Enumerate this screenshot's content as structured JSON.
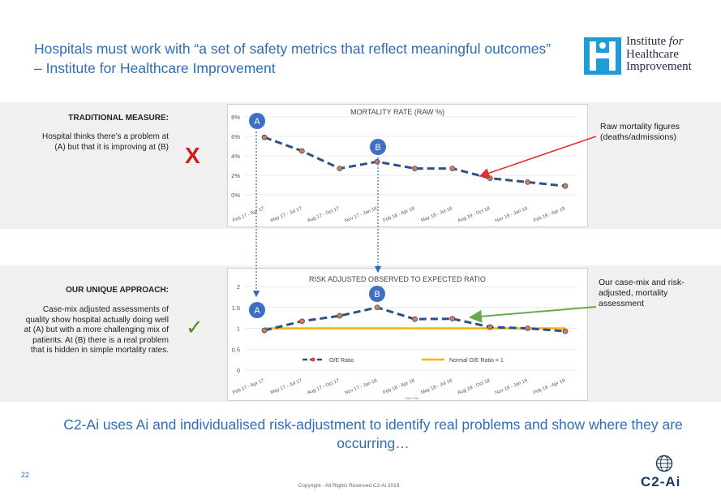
{
  "slide": {
    "title": "Hospitals must work with “a set of safety metrics that reflect meaningful outcomes” – Institute for Healthcare Improvement",
    "logo": {
      "line1": "Institute",
      "line1_italic": "for",
      "line2": "Healthcare",
      "line3": "Improvement"
    },
    "traditional": {
      "heading": "TRADITIONAL MEASURE:",
      "body": "Hospital thinks there’s a problem at (A) but that it is improving at (B)"
    },
    "unique": {
      "heading": "OUR UNIQUE APPROACH:",
      "body": "Case-mix adjusted assessments of quality show hospital actually doing well at (A) but with a more challenging mix of patients.  At (B) there is a real problem that is hidden in simple mortality rates."
    },
    "callout_top": "Raw mortality figures (deaths/admissions)",
    "callout_bottom": "Our case-mix and risk-adjusted, mortality assessment",
    "bottom_text": "C2-Ai uses Ai and individualised risk-adjustment to identify real  problems and show where they are occurring…",
    "page_number": "22",
    "copyright": "Copyright - All Rights Reserved C2-Ai 2019",
    "brand": "C2-Ai",
    "marks": {
      "cross": "X",
      "check": "✓",
      "colors": {
        "cross": "#d11a1a",
        "check": "#4f8f2a",
        "accent": "#2f6db5"
      }
    }
  },
  "chart_data": [
    {
      "type": "line",
      "title": "MORTALITY RATE (RAW %)",
      "categories": [
        "Feb 17 - Apr 17",
        "May 17 - Jul 17",
        "Aug 17 - Oct 17",
        "Nov 17 - Jan 18",
        "Feb 18 - Apr 18",
        "May 18 - Jul 18",
        "Aug 18 - Oct 18",
        "Nov 18 - Jan 19",
        "Feb 19 - Apr 19"
      ],
      "yticks": [
        "0%",
        "2%",
        "4%",
        "6%",
        "8%"
      ],
      "ylim": [
        0,
        8
      ],
      "series": [
        {
          "values": [
            5.9,
            4.5,
            2.7,
            3.4,
            2.7,
            2.7,
            1.7,
            1.3,
            0.9
          ],
          "color": "#2e4f88"
        }
      ],
      "markers": [
        {
          "label": "A",
          "index": 0
        },
        {
          "label": "B",
          "index": 3
        }
      ]
    },
    {
      "type": "line",
      "title": "RISK ADJUSTED OBSERVED TO EXPECTED RATIO",
      "categories": [
        "Feb 17 - Apr 17",
        "May 17 - Jul 17",
        "Aug 17 - Oct 17",
        "Nov 17 - Jan 18",
        "Feb 18 - Apr 18",
        "May 18 - Jul 18",
        "Aug 18 - Oct 18",
        "Nov 18 - Jan 19",
        "Feb 19 - Apr 19"
      ],
      "yticks": [
        "0",
        "0.5",
        "1",
        "1.5",
        "2"
      ],
      "ylim": [
        0,
        2
      ],
      "series": [
        {
          "name": "O/E Ratio",
          "values": [
            0.95,
            1.17,
            1.3,
            1.5,
            1.22,
            1.23,
            1.03,
            1.0,
            0.93
          ],
          "color": "#2e4f88"
        },
        {
          "name": "Normal O/E Ratio = 1",
          "values": [
            1,
            1,
            1,
            1,
            1,
            1,
            1,
            1,
            1
          ],
          "color": "#f4b400"
        }
      ],
      "markers": [
        {
          "label": "A",
          "index": 0
        },
        {
          "label": "B",
          "index": 3
        }
      ],
      "axis_note": "Axis Title"
    }
  ]
}
